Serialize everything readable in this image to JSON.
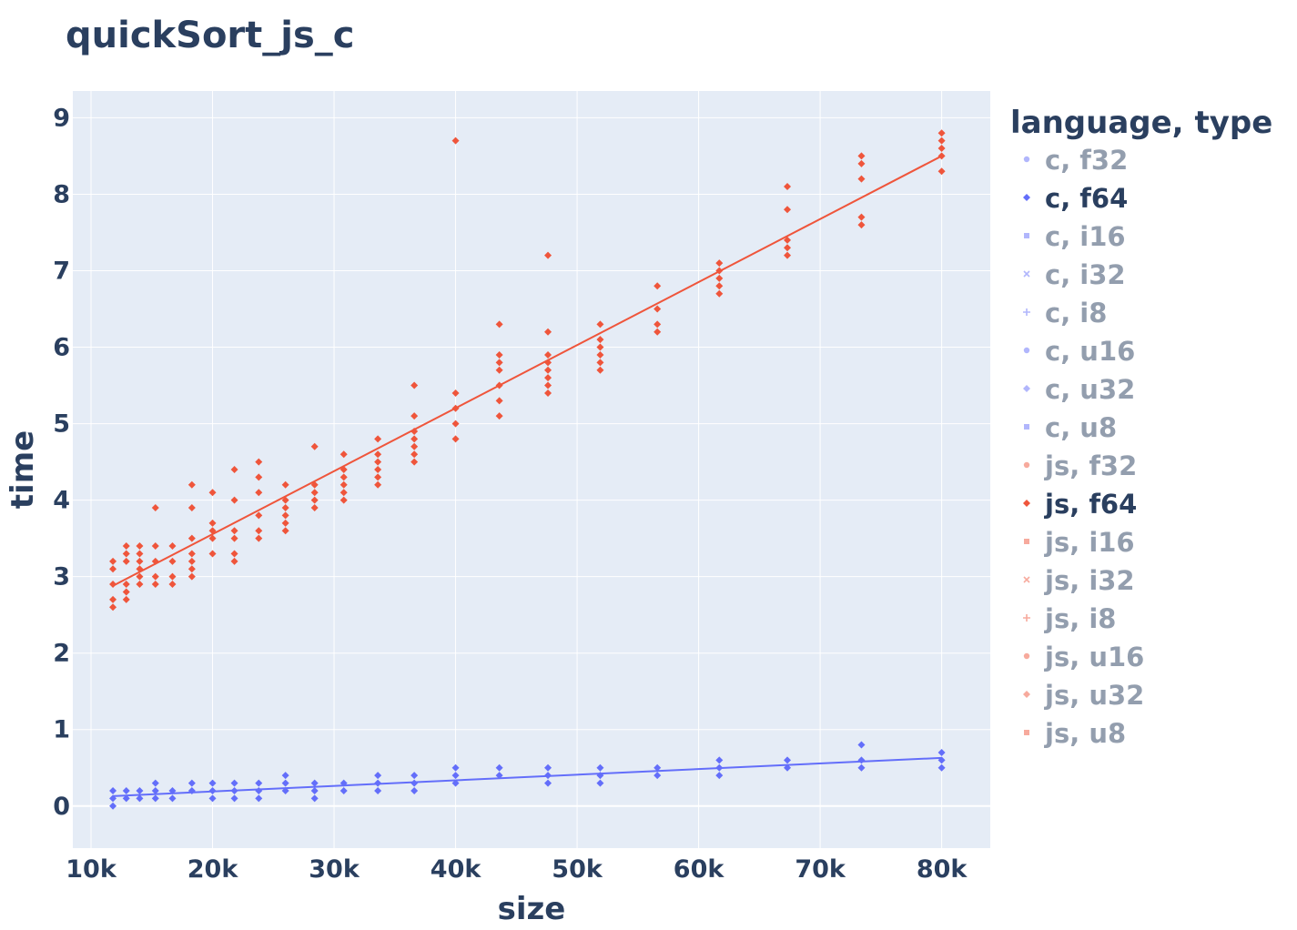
{
  "chart_data": {
    "type": "scatter",
    "title": "quickSort_js_c",
    "xlabel": "size",
    "ylabel": "time",
    "xlim": [
      8500,
      84000
    ],
    "ylim": [
      -0.55,
      9.35
    ],
    "x_ticks": [
      {
        "value": 10000,
        "label": "10k"
      },
      {
        "value": 20000,
        "label": "20k"
      },
      {
        "value": 30000,
        "label": "30k"
      },
      {
        "value": 40000,
        "label": "40k"
      },
      {
        "value": 50000,
        "label": "50k"
      },
      {
        "value": 60000,
        "label": "60k"
      },
      {
        "value": 70000,
        "label": "70k"
      },
      {
        "value": 80000,
        "label": "80k"
      }
    ],
    "y_ticks": [
      {
        "value": 0,
        "label": "0"
      },
      {
        "value": 1,
        "label": "1"
      },
      {
        "value": 2,
        "label": "2"
      },
      {
        "value": 3,
        "label": "3"
      },
      {
        "value": 4,
        "label": "4"
      },
      {
        "value": 5,
        "label": "5"
      },
      {
        "value": 6,
        "label": "6"
      },
      {
        "value": 7,
        "label": "7"
      },
      {
        "value": 8,
        "label": "8"
      },
      {
        "value": 9,
        "label": "9"
      }
    ],
    "grid": true,
    "legend_placement": "right",
    "legend": {
      "title": "language, type",
      "items": [
        {
          "label": "c, f32",
          "color": "#636efa",
          "active": false,
          "symbol": "circle"
        },
        {
          "label": "c, f64",
          "color": "#636efa",
          "active": true,
          "symbol": "diamond"
        },
        {
          "label": "c, i16",
          "color": "#636efa",
          "active": false,
          "symbol": "square"
        },
        {
          "label": "c, i32",
          "color": "#636efa",
          "active": false,
          "symbol": "x"
        },
        {
          "label": "c, i8",
          "color": "#636efa",
          "active": false,
          "symbol": "cross"
        },
        {
          "label": "c, u16",
          "color": "#636efa",
          "active": false,
          "symbol": "circle"
        },
        {
          "label": "c, u32",
          "color": "#636efa",
          "active": false,
          "symbol": "diamond"
        },
        {
          "label": "c, u8",
          "color": "#636efa",
          "active": false,
          "symbol": "square"
        },
        {
          "label": "js, f32",
          "color": "#ef553b",
          "active": false,
          "symbol": "circle"
        },
        {
          "label": "js, f64",
          "color": "#ef553b",
          "active": true,
          "symbol": "diamond"
        },
        {
          "label": "js, i16",
          "color": "#ef553b",
          "active": false,
          "symbol": "square"
        },
        {
          "label": "js, i32",
          "color": "#ef553b",
          "active": false,
          "symbol": "x"
        },
        {
          "label": "js, i8",
          "color": "#ef553b",
          "active": false,
          "symbol": "cross"
        },
        {
          "label": "js, u16",
          "color": "#ef553b",
          "active": false,
          "symbol": "circle"
        },
        {
          "label": "js, u32",
          "color": "#ef553b",
          "active": false,
          "symbol": "diamond"
        },
        {
          "label": "js, u8",
          "color": "#ef553b",
          "active": false,
          "symbol": "square"
        }
      ]
    },
    "series": [
      {
        "name": "c, f64",
        "color": "#636efa",
        "points": [
          [
            11800,
            0.0
          ],
          [
            11800,
            0.1
          ],
          [
            11800,
            0.2
          ],
          [
            12900,
            0.1
          ],
          [
            12900,
            0.2
          ],
          [
            14000,
            0.1
          ],
          [
            14000,
            0.2
          ],
          [
            15300,
            0.1
          ],
          [
            15300,
            0.2
          ],
          [
            15300,
            0.3
          ],
          [
            16700,
            0.1
          ],
          [
            16700,
            0.2
          ],
          [
            18300,
            0.2
          ],
          [
            18300,
            0.3
          ],
          [
            20000,
            0.1
          ],
          [
            20000,
            0.2
          ],
          [
            20000,
            0.3
          ],
          [
            21800,
            0.1
          ],
          [
            21800,
            0.2
          ],
          [
            21800,
            0.3
          ],
          [
            23800,
            0.1
          ],
          [
            23800,
            0.2
          ],
          [
            23800,
            0.3
          ],
          [
            26000,
            0.2
          ],
          [
            26000,
            0.3
          ],
          [
            26000,
            0.4
          ],
          [
            28400,
            0.1
          ],
          [
            28400,
            0.2
          ],
          [
            28400,
            0.3
          ],
          [
            30800,
            0.2
          ],
          [
            30800,
            0.3
          ],
          [
            33600,
            0.2
          ],
          [
            33600,
            0.3
          ],
          [
            33600,
            0.4
          ],
          [
            36600,
            0.2
          ],
          [
            36600,
            0.3
          ],
          [
            36600,
            0.4
          ],
          [
            40000,
            0.3
          ],
          [
            40000,
            0.4
          ],
          [
            40000,
            0.5
          ],
          [
            43600,
            0.4
          ],
          [
            43600,
            0.5
          ],
          [
            47600,
            0.3
          ],
          [
            47600,
            0.4
          ],
          [
            47600,
            0.5
          ],
          [
            51900,
            0.3
          ],
          [
            51900,
            0.4
          ],
          [
            51900,
            0.5
          ],
          [
            56600,
            0.4
          ],
          [
            56600,
            0.5
          ],
          [
            61700,
            0.4
          ],
          [
            61700,
            0.5
          ],
          [
            61700,
            0.6
          ],
          [
            67300,
            0.5
          ],
          [
            67300,
            0.6
          ],
          [
            73400,
            0.5
          ],
          [
            73400,
            0.6
          ],
          [
            73400,
            0.8
          ],
          [
            80000,
            0.5
          ],
          [
            80000,
            0.6
          ],
          [
            80000,
            0.7
          ]
        ],
        "trendline": [
          [
            11800,
            0.13
          ],
          [
            80000,
            0.63
          ]
        ]
      },
      {
        "name": "js, f64",
        "color": "#ef553b",
        "points": [
          [
            11800,
            2.6
          ],
          [
            11800,
            2.7
          ],
          [
            11800,
            2.9
          ],
          [
            11800,
            3.1
          ],
          [
            11800,
            3.2
          ],
          [
            12900,
            2.7
          ],
          [
            12900,
            2.8
          ],
          [
            12900,
            2.9
          ],
          [
            12900,
            3.2
          ],
          [
            12900,
            3.3
          ],
          [
            12900,
            3.4
          ],
          [
            14000,
            2.9
          ],
          [
            14000,
            3.0
          ],
          [
            14000,
            3.1
          ],
          [
            14000,
            3.2
          ],
          [
            14000,
            3.3
          ],
          [
            14000,
            3.4
          ],
          [
            15300,
            2.9
          ],
          [
            15300,
            3.0
          ],
          [
            15300,
            3.2
          ],
          [
            15300,
            3.4
          ],
          [
            15300,
            3.9
          ],
          [
            16700,
            2.9
          ],
          [
            16700,
            3.0
          ],
          [
            16700,
            3.2
          ],
          [
            16700,
            3.4
          ],
          [
            18300,
            3.0
          ],
          [
            18300,
            3.1
          ],
          [
            18300,
            3.2
          ],
          [
            18300,
            3.3
          ],
          [
            18300,
            3.5
          ],
          [
            18300,
            3.9
          ],
          [
            18300,
            4.2
          ],
          [
            20000,
            3.3
          ],
          [
            20000,
            3.5
          ],
          [
            20000,
            3.6
          ],
          [
            20000,
            3.7
          ],
          [
            20000,
            4.1
          ],
          [
            21800,
            3.2
          ],
          [
            21800,
            3.3
          ],
          [
            21800,
            3.5
          ],
          [
            21800,
            3.6
          ],
          [
            21800,
            4.0
          ],
          [
            21800,
            4.4
          ],
          [
            23800,
            3.5
          ],
          [
            23800,
            3.6
          ],
          [
            23800,
            3.8
          ],
          [
            23800,
            4.1
          ],
          [
            23800,
            4.3
          ],
          [
            23800,
            4.5
          ],
          [
            26000,
            3.6
          ],
          [
            26000,
            3.7
          ],
          [
            26000,
            3.8
          ],
          [
            26000,
            3.9
          ],
          [
            26000,
            4.0
          ],
          [
            26000,
            4.2
          ],
          [
            28400,
            3.9
          ],
          [
            28400,
            4.0
          ],
          [
            28400,
            4.1
          ],
          [
            28400,
            4.2
          ],
          [
            28400,
            4.7
          ],
          [
            30800,
            4.0
          ],
          [
            30800,
            4.1
          ],
          [
            30800,
            4.2
          ],
          [
            30800,
            4.3
          ],
          [
            30800,
            4.4
          ],
          [
            30800,
            4.6
          ],
          [
            33600,
            4.2
          ],
          [
            33600,
            4.3
          ],
          [
            33600,
            4.4
          ],
          [
            33600,
            4.5
          ],
          [
            33600,
            4.6
          ],
          [
            33600,
            4.8
          ],
          [
            36600,
            4.5
          ],
          [
            36600,
            4.6
          ],
          [
            36600,
            4.7
          ],
          [
            36600,
            4.8
          ],
          [
            36600,
            4.9
          ],
          [
            36600,
            5.1
          ],
          [
            36600,
            5.5
          ],
          [
            40000,
            4.8
          ],
          [
            40000,
            5.0
          ],
          [
            40000,
            5.2
          ],
          [
            40000,
            5.4
          ],
          [
            40000,
            8.7
          ],
          [
            43600,
            5.1
          ],
          [
            43600,
            5.3
          ],
          [
            43600,
            5.5
          ],
          [
            43600,
            5.7
          ],
          [
            43600,
            5.8
          ],
          [
            43600,
            5.9
          ],
          [
            43600,
            6.3
          ],
          [
            47600,
            5.4
          ],
          [
            47600,
            5.5
          ],
          [
            47600,
            5.6
          ],
          [
            47600,
            5.7
          ],
          [
            47600,
            5.8
          ],
          [
            47600,
            5.9
          ],
          [
            47600,
            6.2
          ],
          [
            47600,
            7.2
          ],
          [
            51900,
            5.7
          ],
          [
            51900,
            5.8
          ],
          [
            51900,
            5.9
          ],
          [
            51900,
            6.0
          ],
          [
            51900,
            6.1
          ],
          [
            51900,
            6.3
          ],
          [
            56600,
            6.2
          ],
          [
            56600,
            6.3
          ],
          [
            56600,
            6.5
          ],
          [
            56600,
            6.8
          ],
          [
            61700,
            6.7
          ],
          [
            61700,
            6.8
          ],
          [
            61700,
            6.9
          ],
          [
            61700,
            7.0
          ],
          [
            61700,
            7.1
          ],
          [
            67300,
            7.2
          ],
          [
            67300,
            7.3
          ],
          [
            67300,
            7.4
          ],
          [
            67300,
            7.8
          ],
          [
            67300,
            8.1
          ],
          [
            73400,
            7.6
          ],
          [
            73400,
            7.7
          ],
          [
            73400,
            8.2
          ],
          [
            73400,
            8.4
          ],
          [
            73400,
            8.5
          ],
          [
            80000,
            8.3
          ],
          [
            80000,
            8.5
          ],
          [
            80000,
            8.6
          ],
          [
            80000,
            8.7
          ],
          [
            80000,
            8.8
          ]
        ],
        "trendline": [
          [
            11800,
            2.88
          ],
          [
            80000,
            8.5
          ]
        ]
      }
    ]
  }
}
